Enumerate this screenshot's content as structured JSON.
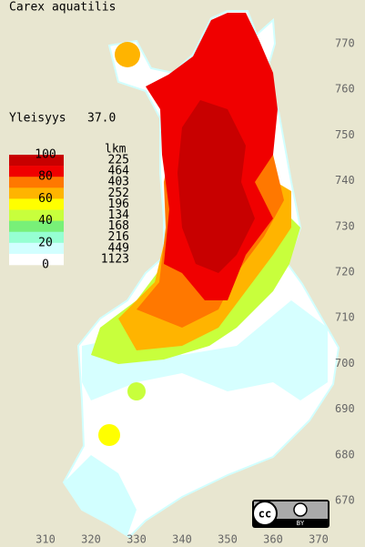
{
  "header": {
    "title": "Carex aquatilis",
    "frequency_label": "Yleisyys",
    "frequency_value": "37.0"
  },
  "legend": {
    "count_heading": "lkm",
    "class_limits": [
      "100",
      "80",
      "60",
      "40",
      "20",
      "0"
    ],
    "colors": [
      "#c80000",
      "#f00000",
      "#ff7800",
      "#ffb400",
      "#ffff00",
      "#c8ff3c",
      "#78f078",
      "#96ffd2",
      "#d2ffff",
      "#ffffff"
    ],
    "counts": [
      "225",
      "464",
      "403",
      "252",
      "196",
      "134",
      "168",
      "216",
      "449",
      "1123"
    ]
  },
  "axes": {
    "northing": [
      "770",
      "760",
      "750",
      "740",
      "730",
      "720",
      "710",
      "700",
      "690",
      "680",
      "670"
    ],
    "easting": [
      "310",
      "320",
      "330",
      "340",
      "350",
      "360",
      "370"
    ]
  },
  "license": {
    "badge": "cc",
    "by": "BY"
  }
}
